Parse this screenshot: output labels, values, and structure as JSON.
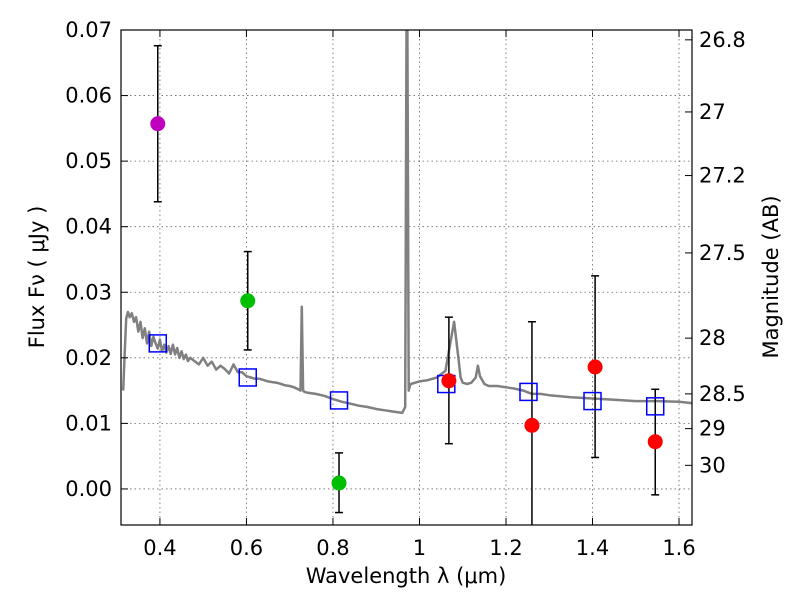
{
  "chart_data": {
    "type": "scatter",
    "xlabel": "Wavelength  λ (μm)",
    "ylabel": "Flux  Fν  ( μJy )",
    "ylabel_right": "Magnitude (AB)",
    "xlim": [
      0.31,
      1.63
    ],
    "ylim": [
      -0.0055,
      0.07
    ],
    "x_ticks": [
      {
        "value": 0.4,
        "label": "0.4"
      },
      {
        "value": 0.6,
        "label": "0.6"
      },
      {
        "value": 0.8,
        "label": "0.8"
      },
      {
        "value": 1.0,
        "label": "1"
      },
      {
        "value": 1.2,
        "label": "1.2"
      },
      {
        "value": 1.4,
        "label": "1.4"
      },
      {
        "value": 1.6,
        "label": "1.6"
      }
    ],
    "y_ticks": [
      {
        "value": 0.0,
        "label": "0.00"
      },
      {
        "value": 0.01,
        "label": "0.01"
      },
      {
        "value": 0.02,
        "label": "0.02"
      },
      {
        "value": 0.03,
        "label": "0.03"
      },
      {
        "value": 0.04,
        "label": "0.04"
      },
      {
        "value": 0.05,
        "label": "0.05"
      },
      {
        "value": 0.06,
        "label": "0.06"
      },
      {
        "value": 0.07,
        "label": "0.07"
      }
    ],
    "magnitude_ticks": [
      {
        "flux": 0.0685,
        "label": "26.8"
      },
      {
        "flux": 0.0575,
        "label": "27"
      },
      {
        "flux": 0.0478,
        "label": "27.2"
      },
      {
        "flux": 0.036,
        "label": "27.5"
      },
      {
        "flux": 0.023,
        "label": "28"
      },
      {
        "flux": 0.0145,
        "label": "28.5"
      },
      {
        "flux": 0.0092,
        "label": "29"
      },
      {
        "flux": 0.0036,
        "label": "30"
      }
    ],
    "observed_points": [
      {
        "x": 0.395,
        "y": 0.0557,
        "err_low": 0.0438,
        "err_high": 0.0676,
        "color": "#bf00bf"
      },
      {
        "x": 0.603,
        "y": 0.0287,
        "err_low": 0.0212,
        "err_high": 0.0362,
        "color": "#00bf00"
      },
      {
        "x": 0.814,
        "y": 0.0009,
        "err_low": -0.0036,
        "err_high": 0.0055,
        "color": "#00bf00"
      },
      {
        "x": 1.068,
        "y": 0.0165,
        "err_low": 0.0069,
        "err_high": 0.0262,
        "color": "#ff0000"
      },
      {
        "x": 1.26,
        "y": 0.0097,
        "err_low": -0.006,
        "err_high": 0.0255,
        "color": "#ff0000"
      },
      {
        "x": 1.406,
        "y": 0.0186,
        "err_low": 0.0048,
        "err_high": 0.0325,
        "color": "#ff0000"
      },
      {
        "x": 1.545,
        "y": 0.0072,
        "err_low": -0.0009,
        "err_high": 0.0152,
        "color": "#ff0000"
      }
    ],
    "model_points": [
      {
        "x": 0.395,
        "y": 0.0222
      },
      {
        "x": 0.603,
        "y": 0.017
      },
      {
        "x": 0.814,
        "y": 0.0135
      },
      {
        "x": 1.062,
        "y": 0.016
      },
      {
        "x": 1.252,
        "y": 0.0148
      },
      {
        "x": 1.4,
        "y": 0.0134
      },
      {
        "x": 1.545,
        "y": 0.0126
      }
    ],
    "sed_curve": {
      "color": "#808080",
      "x": [
        0.315,
        0.318,
        0.322,
        0.326,
        0.33,
        0.335,
        0.34,
        0.345,
        0.35,
        0.355,
        0.36,
        0.365,
        0.37,
        0.375,
        0.38,
        0.385,
        0.39,
        0.395,
        0.4,
        0.405,
        0.41,
        0.415,
        0.42,
        0.425,
        0.43,
        0.435,
        0.44,
        0.445,
        0.45,
        0.455,
        0.46,
        0.465,
        0.47,
        0.48,
        0.49,
        0.5,
        0.51,
        0.52,
        0.53,
        0.54,
        0.55,
        0.56,
        0.57,
        0.58,
        0.59,
        0.6,
        0.61,
        0.62,
        0.63,
        0.64,
        0.65,
        0.66,
        0.67,
        0.68,
        0.69,
        0.7,
        0.71,
        0.72,
        0.725,
        0.728,
        0.731,
        0.734,
        0.74,
        0.76,
        0.78,
        0.8,
        0.82,
        0.84,
        0.86,
        0.88,
        0.9,
        0.92,
        0.94,
        0.96,
        0.967,
        0.97,
        0.972,
        0.975,
        0.978,
        0.98,
        0.99,
        1.0,
        1.02,
        1.04,
        1.06,
        1.08,
        1.09,
        1.095,
        1.1,
        1.11,
        1.12,
        1.13,
        1.135,
        1.14,
        1.15,
        1.16,
        1.18,
        1.2,
        1.22,
        1.24,
        1.26,
        1.28,
        1.3,
        1.35,
        1.4,
        1.45,
        1.5,
        1.55,
        1.6,
        1.63
      ],
      "y": [
        0.015,
        0.02,
        0.026,
        0.027,
        0.0262,
        0.0268,
        0.0255,
        0.0262,
        0.024,
        0.0255,
        0.023,
        0.0245,
        0.0222,
        0.024,
        0.0218,
        0.0232,
        0.0222,
        0.0214,
        0.0228,
        0.021,
        0.022,
        0.0208,
        0.0218,
        0.0206,
        0.022,
        0.0205,
        0.0215,
        0.02,
        0.021,
        0.0198,
        0.0205,
        0.0195,
        0.02,
        0.0195,
        0.019,
        0.02,
        0.0188,
        0.0194,
        0.0182,
        0.0188,
        0.0183,
        0.0176,
        0.019,
        0.0178,
        0.0178,
        0.0172,
        0.017,
        0.0168,
        0.0168,
        0.0166,
        0.0164,
        0.0163,
        0.0162,
        0.016,
        0.0158,
        0.0157,
        0.0155,
        0.0152,
        0.015,
        0.0278,
        0.015,
        0.0148,
        0.0147,
        0.0145,
        0.0142,
        0.0137,
        0.0133,
        0.013,
        0.0127,
        0.0125,
        0.0122,
        0.012,
        0.0118,
        0.0116,
        0.0125,
        0.07,
        0.07,
        0.015,
        0.0158,
        0.016,
        0.0162,
        0.0164,
        0.0166,
        0.017,
        0.018,
        0.0255,
        0.02,
        0.017,
        0.0162,
        0.016,
        0.0162,
        0.017,
        0.0188,
        0.0172,
        0.016,
        0.0157,
        0.0157,
        0.0155,
        0.0153,
        0.015,
        0.0145,
        0.0145,
        0.0143,
        0.014,
        0.0138,
        0.0136,
        0.0134,
        0.0134,
        0.0133,
        0.0131
      ]
    }
  }
}
